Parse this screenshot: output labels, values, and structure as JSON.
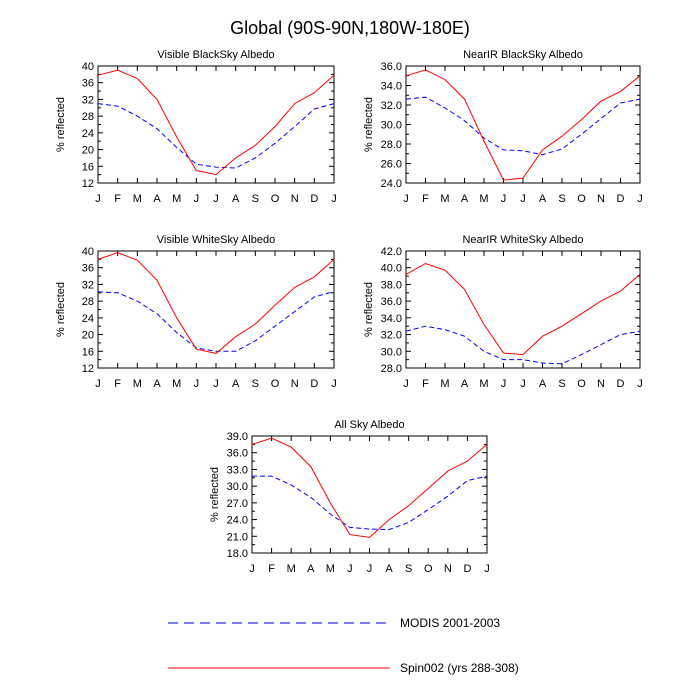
{
  "page": {
    "title": "Global (90S-90N,180W-180E)"
  },
  "legend": [
    {
      "label": "MODIS 2001-2003",
      "color": "#0000ff",
      "dash": true
    },
    {
      "label": "Spin002 (yrs 288-308)",
      "color": "#ff0000",
      "dash": false
    }
  ],
  "chart_data": [
    {
      "type": "line",
      "title": "Visible BlackSky Albedo",
      "ylabel": "% reflected",
      "categories": [
        "J",
        "F",
        "M",
        "A",
        "M",
        "J",
        "J",
        "A",
        "S",
        "O",
        "N",
        "D",
        "J"
      ],
      "ylim": [
        12,
        40
      ],
      "yticks": [
        "12",
        "16",
        "20",
        "24",
        "28",
        "32",
        "36",
        "40"
      ],
      "series": [
        {
          "name": "MODIS 2001-2003",
          "color": "#0000ff",
          "dash": true,
          "values": [
            31.0,
            30.4,
            28.0,
            25.0,
            20.5,
            16.5,
            15.8,
            15.6,
            18.0,
            21.5,
            25.5,
            29.7,
            31.0
          ]
        },
        {
          "name": "Spin002 (yrs 288-308)",
          "color": "#ff0000",
          "dash": false,
          "values": [
            37.8,
            39.0,
            37.0,
            32.0,
            23.0,
            15.0,
            14.0,
            18.0,
            21.0,
            25.5,
            31.0,
            33.6,
            37.8
          ]
        }
      ]
    },
    {
      "type": "line",
      "title": "NearIR BlackSky Albedo",
      "ylabel": "% reflected",
      "categories": [
        "J",
        "F",
        "M",
        "A",
        "M",
        "J",
        "J",
        "A",
        "S",
        "O",
        "N",
        "D",
        "J"
      ],
      "ylim": [
        24,
        36
      ],
      "yticks": [
        "24.0",
        "26.0",
        "28.0",
        "30.0",
        "32.0",
        "34.0",
        "36.0"
      ],
      "series": [
        {
          "name": "MODIS 2001-2003",
          "color": "#0000ff",
          "dash": true,
          "values": [
            32.6,
            32.8,
            31.7,
            30.4,
            28.6,
            27.4,
            27.3,
            26.9,
            27.5,
            29.0,
            30.6,
            32.2,
            32.6
          ]
        },
        {
          "name": "Spin002 (yrs 288-308)",
          "color": "#ff0000",
          "dash": false,
          "values": [
            35.0,
            35.6,
            34.6,
            32.6,
            28.3,
            24.3,
            24.5,
            27.4,
            28.8,
            30.5,
            32.4,
            33.4,
            35.0
          ]
        }
      ]
    },
    {
      "type": "line",
      "title": "Visible WhiteSky Albedo",
      "ylabel": "% reflected",
      "categories": [
        "J",
        "F",
        "M",
        "A",
        "M",
        "J",
        "J",
        "A",
        "S",
        "O",
        "N",
        "D",
        "J"
      ],
      "ylim": [
        12,
        40
      ],
      "yticks": [
        "12",
        "16",
        "20",
        "24",
        "28",
        "32",
        "36",
        "40"
      ],
      "series": [
        {
          "name": "MODIS 2001-2003",
          "color": "#0000ff",
          "dash": true,
          "values": [
            30.2,
            30.0,
            28.0,
            25.0,
            20.5,
            16.8,
            16.0,
            16.0,
            18.5,
            22.0,
            25.5,
            29.0,
            30.3
          ]
        },
        {
          "name": "Spin002 (yrs 288-308)",
          "color": "#ff0000",
          "dash": false,
          "values": [
            38.0,
            39.6,
            37.8,
            33.0,
            24.0,
            16.5,
            15.5,
            19.5,
            22.5,
            27.0,
            31.3,
            33.8,
            38.0
          ]
        }
      ]
    },
    {
      "type": "line",
      "title": "NearIR WhiteSky Albedo",
      "ylabel": "% reflected",
      "categories": [
        "J",
        "F",
        "M",
        "A",
        "M",
        "J",
        "J",
        "A",
        "S",
        "O",
        "N",
        "D",
        "J"
      ],
      "ylim": [
        28,
        42
      ],
      "yticks": [
        "28.0",
        "30.0",
        "32.0",
        "34.0",
        "36.0",
        "38.0",
        "40.0",
        "42.0"
      ],
      "series": [
        {
          "name": "MODIS 2001-2003",
          "color": "#0000ff",
          "dash": true,
          "values": [
            32.4,
            33.0,
            32.6,
            31.8,
            30.0,
            29.0,
            29.0,
            28.6,
            28.5,
            29.6,
            30.8,
            32.0,
            32.4
          ]
        },
        {
          "name": "Spin002 (yrs 288-308)",
          "color": "#ff0000",
          "dash": false,
          "values": [
            39.2,
            40.5,
            39.7,
            37.4,
            33.2,
            29.8,
            29.6,
            31.8,
            33.0,
            34.5,
            36.0,
            37.2,
            39.2
          ]
        }
      ]
    },
    {
      "type": "line",
      "title": "All Sky Albedo",
      "ylabel": "% reflected",
      "categories": [
        "J",
        "F",
        "M",
        "A",
        "M",
        "J",
        "J",
        "A",
        "S",
        "O",
        "N",
        "D",
        "J"
      ],
      "ylim": [
        18,
        39
      ],
      "yticks": [
        "18.0",
        "21.0",
        "24.0",
        "27.0",
        "30.0",
        "33.0",
        "36.0",
        "39.0"
      ],
      "series": [
        {
          "name": "MODIS 2001-2003",
          "color": "#0000ff",
          "dash": true,
          "values": [
            31.8,
            31.8,
            30.2,
            28.0,
            25.0,
            22.6,
            22.3,
            22.2,
            23.5,
            25.8,
            28.2,
            31.0,
            31.8
          ]
        },
        {
          "name": "Spin002 (yrs 288-308)",
          "color": "#ff0000",
          "dash": false,
          "values": [
            37.5,
            38.6,
            37.0,
            33.5,
            27.0,
            21.3,
            20.8,
            24.0,
            26.5,
            29.6,
            32.7,
            34.5,
            37.5
          ]
        }
      ]
    }
  ]
}
